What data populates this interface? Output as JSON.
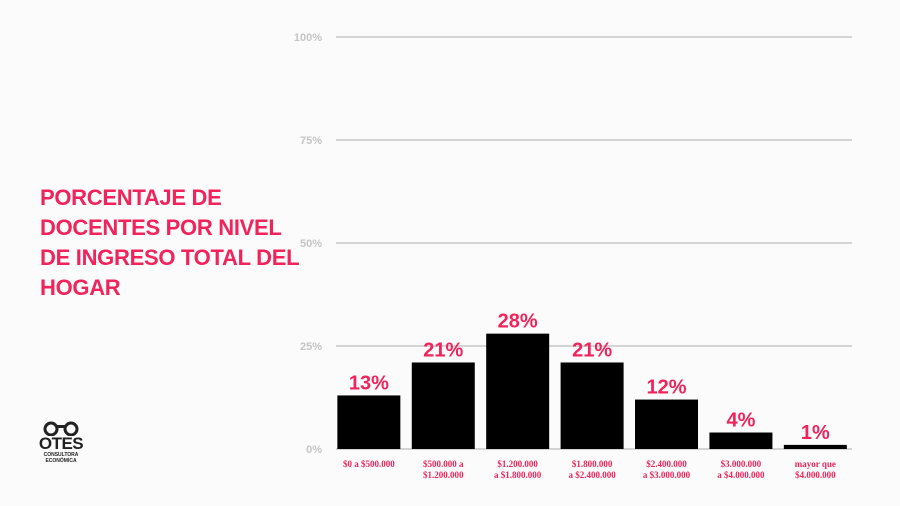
{
  "chart_data": {
    "type": "bar",
    "title": "PORCENTAJE DE DOCENTES POR NIVEL DE INGRESO TOTAL DEL HOGAR",
    "categories": [
      "$0 a $500.000",
      "$500.000 a $1.200.000",
      "$1.200.000 a $1.800.000",
      "$1.800.000 a $2.400.000",
      "$2.400.000 a $3.000.000",
      "$3.000.000 a $4.000.000",
      "mayor que $4.000.000"
    ],
    "category_lines": [
      [
        "$0 a $500.000"
      ],
      [
        "$500.000 a",
        "$1.200.000"
      ],
      [
        "$1.200.000",
        "a $1.800.000"
      ],
      [
        "$1.800.000",
        "a $2.400.000"
      ],
      [
        "$2.400.000",
        "a $3.000.000"
      ],
      [
        "$3.000.000",
        "a $4.000.000"
      ],
      [
        "mayor que",
        "$4.000.000"
      ]
    ],
    "values": [
      13,
      21,
      28,
      21,
      12,
      4,
      1
    ],
    "data_labels": [
      "13%",
      "21%",
      "28%",
      "21%",
      "12%",
      "4%",
      "1%"
    ],
    "yticks": [
      "0%",
      "25%",
      "50%",
      "75%",
      "100%"
    ],
    "ylim": [
      0,
      100
    ],
    "grid": true,
    "bar_color": "#000000",
    "accent_color": "#f0245a"
  },
  "logo": {
    "name": "OTES",
    "sub": "CONSULTORA ECONÓMICA"
  }
}
